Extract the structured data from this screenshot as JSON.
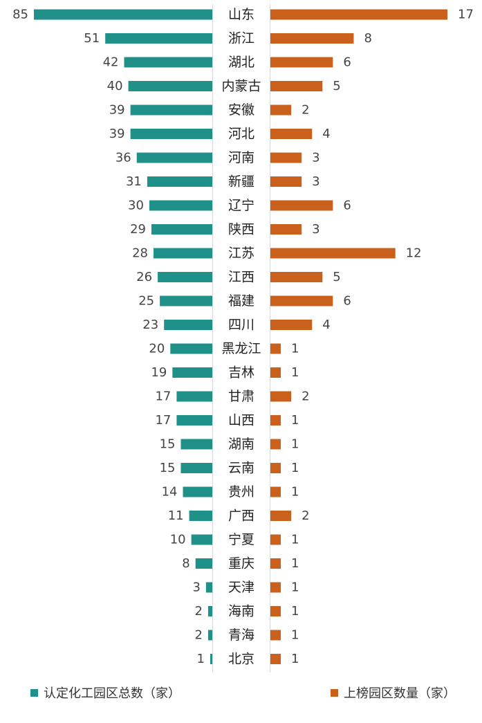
{
  "chart_data": {
    "type": "bar",
    "orientation": "horizontal-butterfly",
    "categories": [
      "山东",
      "浙江",
      "湖北",
      "内蒙古",
      "安徽",
      "河北",
      "河南",
      "新疆",
      "辽宁",
      "陕西",
      "江苏",
      "江西",
      "福建",
      "四川",
      "黑龙江",
      "吉林",
      "甘肃",
      "山西",
      "湖南",
      "云南",
      "贵州",
      "广西",
      "宁夏",
      "重庆",
      "天津",
      "海南",
      "青海",
      "北京"
    ],
    "series": [
      {
        "name": "认定化工园区总数（家）",
        "color": "#1f9188",
        "side": "left",
        "values": [
          85,
          51,
          42,
          40,
          39,
          39,
          36,
          31,
          30,
          29,
          28,
          26,
          25,
          23,
          20,
          19,
          17,
          17,
          15,
          15,
          14,
          11,
          10,
          8,
          3,
          2,
          2,
          1
        ]
      },
      {
        "name": "上榜园区数量（家）",
        "color": "#c9601b",
        "side": "right",
        "values": [
          17,
          8,
          6,
          5,
          2,
          4,
          3,
          3,
          6,
          3,
          12,
          5,
          6,
          4,
          1,
          1,
          2,
          1,
          1,
          1,
          1,
          2,
          1,
          1,
          1,
          1,
          1,
          1
        ]
      }
    ],
    "title": "",
    "xlabel": "",
    "ylabel": "",
    "legend_position": "bottom",
    "grid": false
  }
}
